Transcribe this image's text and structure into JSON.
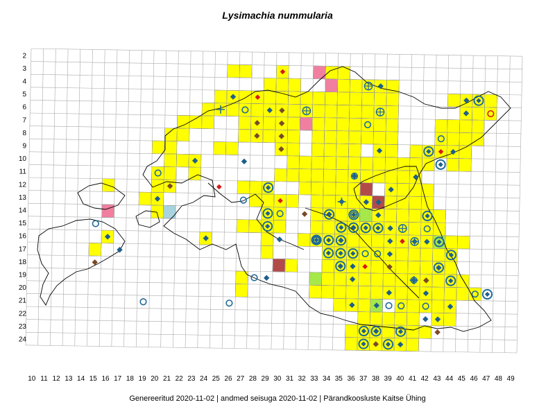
{
  "title": "Lysimachia nummularia",
  "footer": {
    "generated": "Genereeritud 2020-11-02",
    "data_state": "andmed seisuga 2020-11-02",
    "org": "Pärandkoosluste Kaitse Ühing",
    "separator": "|"
  },
  "colors": {
    "grid": "#aaaaaa",
    "coast": "#000000",
    "yellow": "#ffff00",
    "pink": "#f07fa0",
    "darkred": "#b24a4a",
    "lightblue": "#a8d4e0",
    "lightgreen": "#a6e84a",
    "diamond_blue": "#1f5f8b",
    "diamond_brown": "#7a4a26",
    "diamond_red": "#d61a1a",
    "ring": "#1f6a99"
  },
  "x_labels": [
    "10",
    "11",
    "12",
    "13",
    "14",
    "15",
    "16",
    "17",
    "18",
    "19",
    "20",
    "21",
    "22",
    "23",
    "24",
    "25",
    "26",
    "27",
    "28",
    "29",
    "30",
    "31",
    "32",
    "33",
    "34",
    "35",
    "36",
    "37",
    "38",
    "39",
    "40",
    "41",
    "42",
    "43",
    "44",
    "45",
    "46",
    "47",
    "48",
    "49"
  ],
  "y_labels": [
    "2",
    "3",
    "4",
    "5",
    "6",
    "7",
    "8",
    "9",
    "10",
    "11",
    "12",
    "13",
    "14",
    "15",
    "16",
    "17",
    "18",
    "19",
    "20",
    "21",
    "22",
    "23",
    "24"
  ],
  "cells": {
    "yellow": [
      [
        26,
        3
      ],
      [
        27,
        3
      ],
      [
        30,
        3
      ],
      [
        34,
        3
      ],
      [
        35,
        3
      ],
      [
        29,
        4
      ],
      [
        30,
        4
      ],
      [
        31,
        4
      ],
      [
        35,
        4
      ],
      [
        36,
        4
      ],
      [
        37,
        4
      ],
      [
        38,
        4
      ],
      [
        39,
        4
      ],
      [
        25,
        5
      ],
      [
        26,
        5
      ],
      [
        27,
        5
      ],
      [
        28,
        5
      ],
      [
        29,
        5
      ],
      [
        30,
        5
      ],
      [
        31,
        5
      ],
      [
        32,
        5
      ],
      [
        33,
        5
      ],
      [
        34,
        5
      ],
      [
        35,
        5
      ],
      [
        36,
        5
      ],
      [
        37,
        5
      ],
      [
        38,
        5
      ],
      [
        39,
        5
      ],
      [
        44,
        5
      ],
      [
        45,
        5
      ],
      [
        46,
        5
      ],
      [
        47,
        5
      ],
      [
        24,
        6
      ],
      [
        25,
        6
      ],
      [
        26,
        6
      ],
      [
        27,
        6
      ],
      [
        28,
        6
      ],
      [
        29,
        6
      ],
      [
        30,
        6
      ],
      [
        31,
        6
      ],
      [
        32,
        6
      ],
      [
        33,
        6
      ],
      [
        34,
        6
      ],
      [
        35,
        6
      ],
      [
        36,
        6
      ],
      [
        37,
        6
      ],
      [
        38,
        6
      ],
      [
        39,
        6
      ],
      [
        45,
        6
      ],
      [
        46,
        6
      ],
      [
        47,
        6
      ],
      [
        22,
        7
      ],
      [
        23,
        7
      ],
      [
        24,
        7
      ],
      [
        27,
        7
      ],
      [
        28,
        7
      ],
      [
        29,
        7
      ],
      [
        30,
        7
      ],
      [
        31,
        7
      ],
      [
        32,
        7
      ],
      [
        33,
        7
      ],
      [
        34,
        7
      ],
      [
        35,
        7
      ],
      [
        36,
        7
      ],
      [
        37,
        7
      ],
      [
        38,
        7
      ],
      [
        39,
        7
      ],
      [
        43,
        7
      ],
      [
        44,
        7
      ],
      [
        45,
        7
      ],
      [
        46,
        7
      ],
      [
        21,
        8
      ],
      [
        22,
        8
      ],
      [
        27,
        8
      ],
      [
        28,
        8
      ],
      [
        29,
        8
      ],
      [
        30,
        8
      ],
      [
        31,
        8
      ],
      [
        33,
        8
      ],
      [
        34,
        8
      ],
      [
        35,
        8
      ],
      [
        36,
        8
      ],
      [
        37,
        8
      ],
      [
        38,
        8
      ],
      [
        39,
        8
      ],
      [
        43,
        8
      ],
      [
        44,
        8
      ],
      [
        45,
        8
      ],
      [
        46,
        8
      ],
      [
        20,
        9
      ],
      [
        21,
        9
      ],
      [
        25,
        9
      ],
      [
        26,
        9
      ],
      [
        30,
        9
      ],
      [
        31,
        9
      ],
      [
        33,
        9
      ],
      [
        34,
        9
      ],
      [
        35,
        9
      ],
      [
        36,
        9
      ],
      [
        38,
        9
      ],
      [
        39,
        9
      ],
      [
        41,
        9
      ],
      [
        42,
        9
      ],
      [
        43,
        9
      ],
      [
        44,
        9
      ],
      [
        45,
        9
      ],
      [
        21,
        10
      ],
      [
        22,
        10
      ],
      [
        23,
        10
      ],
      [
        31,
        10
      ],
      [
        32,
        10
      ],
      [
        33,
        10
      ],
      [
        34,
        10
      ],
      [
        35,
        10
      ],
      [
        36,
        10
      ],
      [
        37,
        10
      ],
      [
        38,
        10
      ],
      [
        39,
        10
      ],
      [
        40,
        10
      ],
      [
        41,
        10
      ],
      [
        42,
        10
      ],
      [
        44,
        10
      ],
      [
        45,
        10
      ],
      [
        20,
        11
      ],
      [
        21,
        11
      ],
      [
        23,
        11
      ],
      [
        30,
        11
      ],
      [
        31,
        11
      ],
      [
        32,
        11
      ],
      [
        33,
        11
      ],
      [
        34,
        11
      ],
      [
        35,
        11
      ],
      [
        36,
        11
      ],
      [
        37,
        11
      ],
      [
        38,
        11
      ],
      [
        39,
        11
      ],
      [
        40,
        11
      ],
      [
        41,
        11
      ],
      [
        16,
        12
      ],
      [
        20,
        12
      ],
      [
        21,
        12
      ],
      [
        27,
        12
      ],
      [
        28,
        12
      ],
      [
        29,
        12
      ],
      [
        32,
        12
      ],
      [
        33,
        12
      ],
      [
        34,
        12
      ],
      [
        35,
        12
      ],
      [
        36,
        12
      ],
      [
        39,
        12
      ],
      [
        40,
        12
      ],
      [
        41,
        12
      ],
      [
        42,
        12
      ],
      [
        19,
        13
      ],
      [
        20,
        13
      ],
      [
        28,
        13
      ],
      [
        29,
        13
      ],
      [
        30,
        13
      ],
      [
        31,
        13
      ],
      [
        33,
        13
      ],
      [
        34,
        13
      ],
      [
        35,
        13
      ],
      [
        36,
        13
      ],
      [
        37,
        13
      ],
      [
        38,
        13
      ],
      [
        39,
        13
      ],
      [
        40,
        13
      ],
      [
        41,
        13
      ],
      [
        42,
        13
      ],
      [
        20,
        14
      ],
      [
        29,
        14
      ],
      [
        30,
        14
      ],
      [
        33,
        14
      ],
      [
        34,
        14
      ],
      [
        35,
        14
      ],
      [
        36,
        14
      ],
      [
        37,
        14
      ],
      [
        38,
        14
      ],
      [
        39,
        14
      ],
      [
        40,
        14
      ],
      [
        41,
        14
      ],
      [
        42,
        14
      ],
      [
        43,
        14
      ],
      [
        27,
        15
      ],
      [
        28,
        15
      ],
      [
        29,
        15
      ],
      [
        30,
        15
      ],
      [
        33,
        15
      ],
      [
        34,
        15
      ],
      [
        35,
        15
      ],
      [
        36,
        15
      ],
      [
        37,
        15
      ],
      [
        38,
        15
      ],
      [
        39,
        15
      ],
      [
        40,
        15
      ],
      [
        41,
        15
      ],
      [
        42,
        15
      ],
      [
        43,
        15
      ],
      [
        16,
        16
      ],
      [
        24,
        16
      ],
      [
        29,
        16
      ],
      [
        32,
        16
      ],
      [
        33,
        16
      ],
      [
        34,
        16
      ],
      [
        35,
        16
      ],
      [
        36,
        16
      ],
      [
        37,
        16
      ],
      [
        38,
        16
      ],
      [
        39,
        16
      ],
      [
        40,
        16
      ],
      [
        41,
        16
      ],
      [
        42,
        16
      ],
      [
        43,
        16
      ],
      [
        44,
        16
      ],
      [
        45,
        16
      ],
      [
        15,
        17
      ],
      [
        29,
        17
      ],
      [
        34,
        17
      ],
      [
        35,
        17
      ],
      [
        36,
        17
      ],
      [
        37,
        17
      ],
      [
        38,
        17
      ],
      [
        39,
        17
      ],
      [
        40,
        17
      ],
      [
        41,
        17
      ],
      [
        42,
        17
      ],
      [
        43,
        17
      ],
      [
        44,
        17
      ],
      [
        30,
        18
      ],
      [
        31,
        18
      ],
      [
        34,
        18
      ],
      [
        35,
        18
      ],
      [
        36,
        18
      ],
      [
        37,
        18
      ],
      [
        38,
        18
      ],
      [
        39,
        18
      ],
      [
        40,
        18
      ],
      [
        41,
        18
      ],
      [
        42,
        18
      ],
      [
        43,
        18
      ],
      [
        44,
        18
      ],
      [
        27,
        19
      ],
      [
        34,
        19
      ],
      [
        35,
        19
      ],
      [
        36,
        19
      ],
      [
        37,
        19
      ],
      [
        38,
        19
      ],
      [
        39,
        19
      ],
      [
        40,
        19
      ],
      [
        41,
        19
      ],
      [
        42,
        19
      ],
      [
        43,
        19
      ],
      [
        44,
        19
      ],
      [
        45,
        19
      ],
      [
        27,
        20
      ],
      [
        33,
        20
      ],
      [
        34,
        20
      ],
      [
        35,
        20
      ],
      [
        36,
        20
      ],
      [
        37,
        20
      ],
      [
        38,
        20
      ],
      [
        39,
        20
      ],
      [
        40,
        20
      ],
      [
        41,
        20
      ],
      [
        42,
        20
      ],
      [
        43,
        20
      ],
      [
        44,
        20
      ],
      [
        45,
        20
      ],
      [
        46,
        20
      ],
      [
        35,
        21
      ],
      [
        36,
        21
      ],
      [
        37,
        21
      ],
      [
        38,
        21
      ],
      [
        40,
        21
      ],
      [
        41,
        21
      ],
      [
        42,
        21
      ],
      [
        43,
        21
      ],
      [
        44,
        21
      ],
      [
        37,
        22
      ],
      [
        38,
        22
      ],
      [
        39,
        22
      ],
      [
        40,
        22
      ],
      [
        41,
        22
      ],
      [
        43,
        22
      ],
      [
        44,
        22
      ],
      [
        36,
        23
      ],
      [
        37,
        23
      ],
      [
        38,
        23
      ],
      [
        39,
        23
      ],
      [
        40,
        23
      ],
      [
        41,
        23
      ],
      [
        42,
        23
      ],
      [
        36,
        24
      ],
      [
        37,
        24
      ],
      [
        38,
        24
      ],
      [
        39,
        24
      ],
      [
        40,
        24
      ],
      [
        41,
        24
      ]
    ],
    "pink": [
      [
        33,
        3
      ],
      [
        34,
        4
      ],
      [
        32,
        7
      ],
      [
        16,
        14
      ]
    ],
    "darkred": [
      [
        37,
        12
      ],
      [
        38,
        13
      ],
      [
        30,
        18
      ]
    ],
    "lightblue": [
      [
        21,
        14
      ]
    ],
    "lightgreen": [
      [
        33,
        19
      ],
      [
        38,
        21
      ],
      [
        43,
        16
      ],
      [
        37,
        14
      ]
    ]
  },
  "markers": {
    "diamond_blue": [
      [
        38,
        4
      ],
      [
        26,
        5
      ],
      [
        45,
        5
      ],
      [
        29,
        6
      ],
      [
        45,
        6
      ],
      [
        38,
        9
      ],
      [
        44,
        9
      ],
      [
        23,
        10
      ],
      [
        27,
        10
      ],
      [
        36,
        11
      ],
      [
        41,
        11
      ],
      [
        39,
        12
      ],
      [
        20,
        13
      ],
      [
        35,
        13
      ],
      [
        37,
        13
      ],
      [
        38,
        13
      ],
      [
        34,
        14
      ],
      [
        38,
        14
      ],
      [
        36,
        15
      ],
      [
        39,
        15
      ],
      [
        16,
        16
      ],
      [
        24,
        16
      ],
      [
        30,
        16
      ],
      [
        35,
        16
      ],
      [
        39,
        16
      ],
      [
        41,
        16
      ],
      [
        42,
        16
      ],
      [
        17,
        17
      ],
      [
        39,
        17
      ],
      [
        35,
        18
      ],
      [
        36,
        18
      ],
      [
        43,
        18
      ],
      [
        29,
        19
      ],
      [
        36,
        19
      ],
      [
        41,
        19
      ],
      [
        42,
        19
      ],
      [
        39,
        20
      ],
      [
        42,
        20
      ],
      [
        36,
        21
      ],
      [
        38,
        21
      ],
      [
        44,
        21
      ],
      [
        42,
        22
      ],
      [
        43,
        22
      ],
      [
        38,
        23
      ],
      [
        40,
        24
      ]
    ],
    "diamond_brown": [
      [
        30,
        6
      ],
      [
        28,
        7
      ],
      [
        30,
        7
      ],
      [
        28,
        8
      ],
      [
        30,
        8
      ],
      [
        30,
        9
      ],
      [
        21,
        12
      ],
      [
        32,
        14
      ],
      [
        15,
        18
      ],
      [
        39,
        18
      ],
      [
        42,
        19
      ],
      [
        43,
        23
      ],
      [
        38,
        24
      ]
    ],
    "diamond_red": [
      [
        30,
        3
      ],
      [
        28,
        5
      ],
      [
        43,
        9
      ],
      [
        25,
        12
      ],
      [
        30,
        13
      ],
      [
        40,
        16
      ],
      [
        37,
        18
      ]
    ],
    "ring": [
      [
        27,
        6
      ],
      [
        37,
        7
      ],
      [
        43,
        8
      ],
      [
        36,
        11
      ],
      [
        20,
        11
      ],
      [
        27,
        13
      ],
      [
        30,
        14
      ],
      [
        36,
        14
      ],
      [
        42,
        15
      ],
      [
        15,
        15
      ],
      [
        33,
        16
      ],
      [
        38,
        17
      ],
      [
        37,
        17
      ],
      [
        28,
        19
      ],
      [
        41,
        19
      ],
      [
        26,
        21
      ],
      [
        19,
        21
      ],
      [
        39,
        21
      ],
      [
        42,
        21
      ],
      [
        40,
        21
      ],
      [
        46,
        20
      ]
    ],
    "ring_diamond": [
      [
        46,
        5
      ],
      [
        42,
        9
      ],
      [
        43,
        10
      ],
      [
        29,
        12
      ],
      [
        29,
        14
      ],
      [
        29,
        15
      ],
      [
        34,
        14
      ],
      [
        36,
        14
      ],
      [
        35,
        15
      ],
      [
        36,
        15
      ],
      [
        37,
        15
      ],
      [
        38,
        15
      ],
      [
        34,
        16
      ],
      [
        35,
        16
      ],
      [
        33,
        16
      ],
      [
        34,
        17
      ],
      [
        35,
        17
      ],
      [
        44,
        17
      ],
      [
        43,
        18
      ],
      [
        35,
        18
      ],
      [
        44,
        19
      ],
      [
        47,
        20
      ],
      [
        37,
        23
      ],
      [
        38,
        23
      ],
      [
        40,
        23
      ],
      [
        37,
        24
      ],
      [
        39,
        24
      ],
      [
        42,
        14
      ],
      [
        43,
        16
      ],
      [
        36,
        17
      ]
    ],
    "ring_cross": [
      [
        37,
        4
      ],
      [
        32,
        6
      ],
      [
        38,
        6
      ],
      [
        33,
        16
      ],
      [
        40,
        15
      ],
      [
        41,
        16
      ]
    ],
    "plus": [
      [
        25,
        6
      ],
      [
        35,
        13
      ],
      [
        41,
        19
      ]
    ],
    "ring_red": [
      [
        47,
        6
      ]
    ]
  }
}
